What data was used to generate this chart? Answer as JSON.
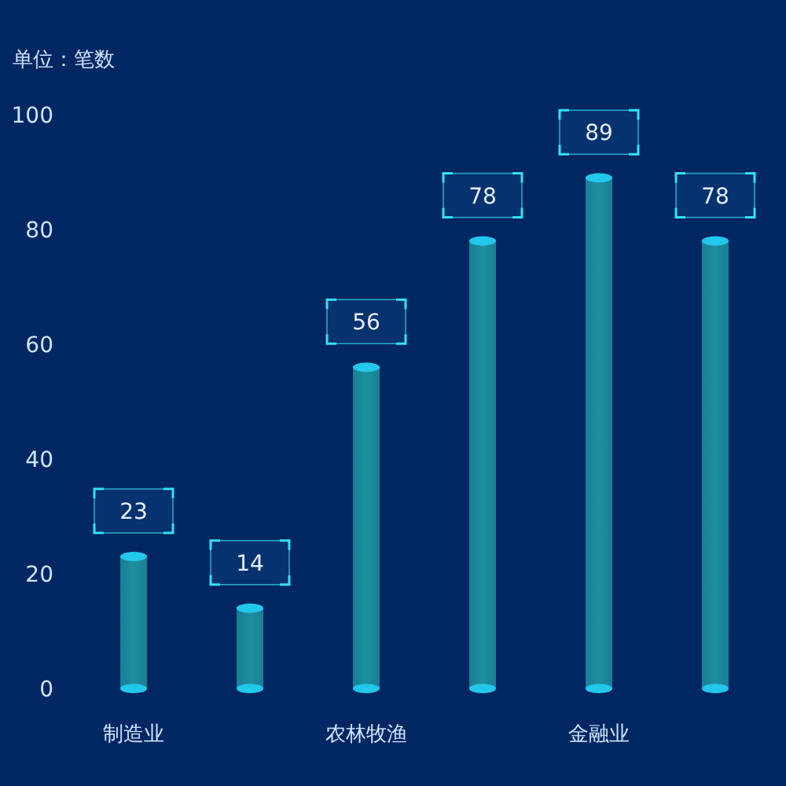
{
  "chart_data": {
    "type": "bar",
    "ylabel": "单位：笔数",
    "categories": [
      "制造业",
      null,
      "农林牧渔",
      null,
      "金融业",
      null
    ],
    "values": [
      23,
      14,
      56,
      78,
      89,
      78
    ],
    "color": "#1d8f9e",
    "ylim": [
      0,
      100
    ],
    "yticks": [
      0,
      20,
      40,
      60,
      80,
      100
    ],
    "data_labels": true,
    "grid": false
  }
}
